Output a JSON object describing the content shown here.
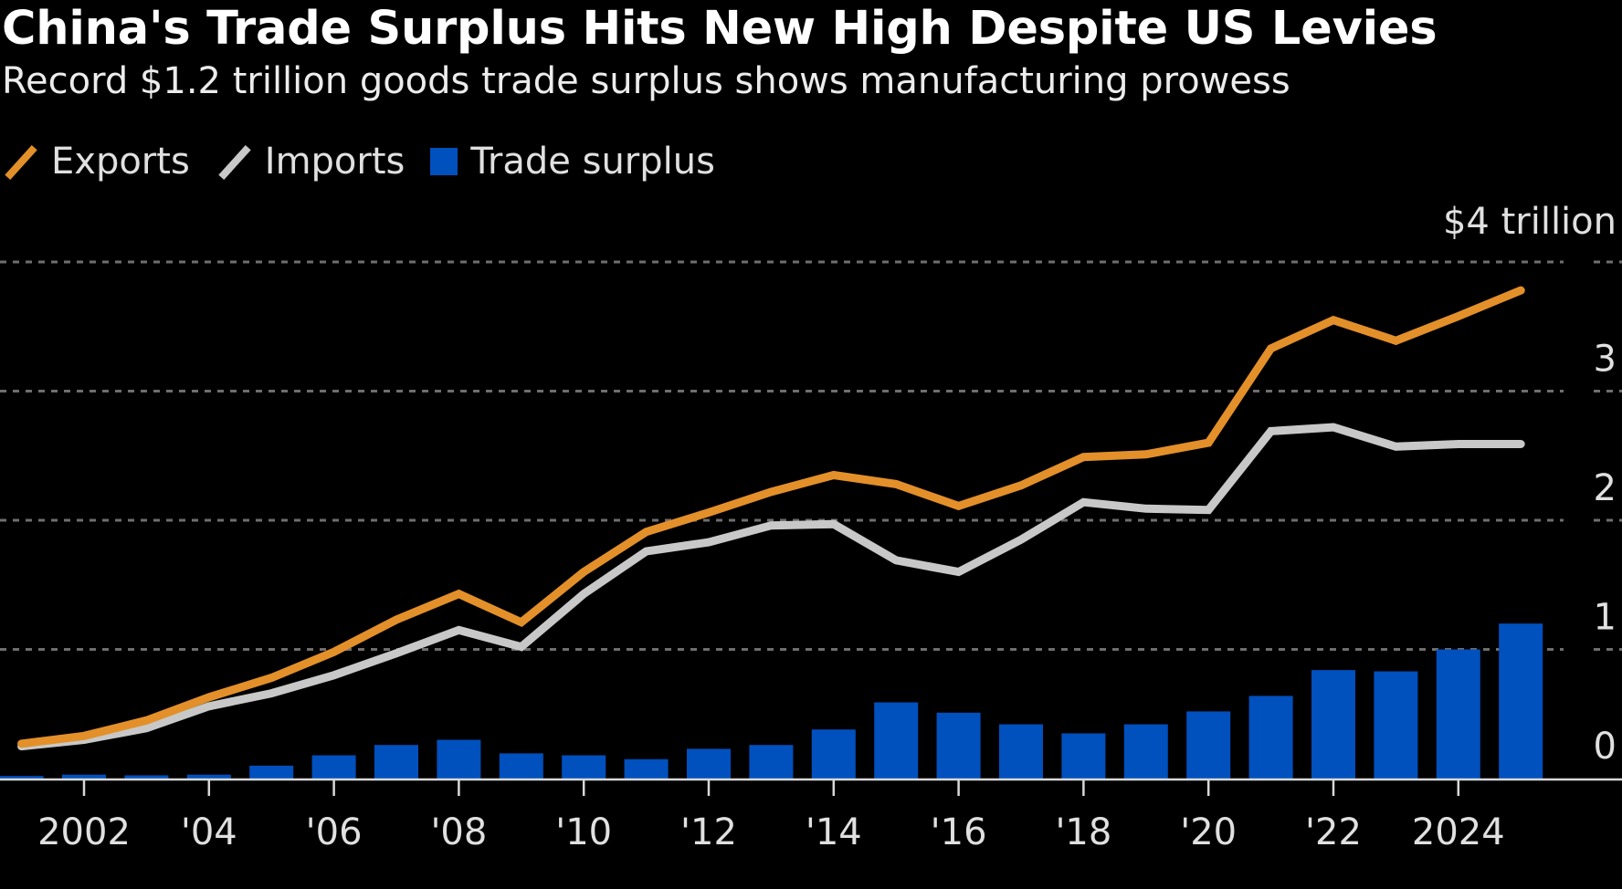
{
  "header": {
    "title": "China's Trade Surplus Hits New High Despite US Levies",
    "subtitle": "Record $1.2 trillion goods trade surplus shows manufacturing prowess"
  },
  "legend": [
    {
      "label": "Exports",
      "kind": "line",
      "color": "#E3902A"
    },
    {
      "label": "Imports",
      "kind": "line",
      "color": "#C8C8C8"
    },
    {
      "label": "Trade surplus",
      "kind": "bar",
      "color": "#0050BE"
    }
  ],
  "axis": {
    "unit_label": "$4 trillion"
  },
  "chart_data": {
    "type": "bar+line",
    "title": "China's Trade Surplus Hits New High Despite US Levies",
    "subtitle": "Record $1.2 trillion goods trade surplus shows manufacturing prowess",
    "xlabel": "",
    "ylabel": "$ trillion",
    "ylim": [
      0,
      4
    ],
    "grid": true,
    "legend_position": "top-left",
    "y_axis_side": "right",
    "y_ticks": [
      0,
      1,
      2,
      3,
      4
    ],
    "y_tick_labels": [
      "0",
      "1",
      "2",
      "3",
      "$4 trillion"
    ],
    "x": [
      2001,
      2002,
      2003,
      2004,
      2005,
      2006,
      2007,
      2008,
      2009,
      2010,
      2011,
      2012,
      2013,
      2014,
      2015,
      2016,
      2017,
      2018,
      2019,
      2020,
      2021,
      2022,
      2023,
      2024,
      2025
    ],
    "x_ticks": [
      2002,
      2004,
      2006,
      2008,
      2010,
      2012,
      2014,
      2016,
      2018,
      2020,
      2022,
      2024
    ],
    "x_tick_labels": [
      "2002",
      "'04",
      "'06",
      "'08",
      "'10",
      "'12",
      "'14",
      "'16",
      "'18",
      "'20",
      "'22",
      "2024"
    ],
    "series": [
      {
        "name": "Exports",
        "type": "line",
        "color": "#E3902A",
        "values": [
          0.27,
          0.33,
          0.45,
          0.63,
          0.78,
          0.98,
          1.23,
          1.43,
          1.21,
          1.6,
          1.91,
          2.06,
          2.22,
          2.35,
          2.28,
          2.11,
          2.27,
          2.49,
          2.51,
          2.6,
          3.33,
          3.55,
          3.39,
          3.58,
          3.78
        ]
      },
      {
        "name": "Imports",
        "type": "line",
        "color": "#C8C8C8",
        "values": [
          0.25,
          0.3,
          0.39,
          0.56,
          0.66,
          0.8,
          0.97,
          1.15,
          1.02,
          1.43,
          1.76,
          1.83,
          1.96,
          1.97,
          1.69,
          1.6,
          1.85,
          2.14,
          2.09,
          2.08,
          2.69,
          2.72,
          2.57,
          2.59,
          2.59
        ]
      },
      {
        "name": "Trade surplus",
        "type": "bar",
        "color": "#0050BE",
        "values": [
          0.02,
          0.03,
          0.025,
          0.03,
          0.1,
          0.18,
          0.26,
          0.3,
          0.195,
          0.18,
          0.15,
          0.23,
          0.26,
          0.38,
          0.59,
          0.51,
          0.42,
          0.35,
          0.42,
          0.52,
          0.64,
          0.84,
          0.83,
          1.0,
          1.2
        ]
      }
    ]
  }
}
